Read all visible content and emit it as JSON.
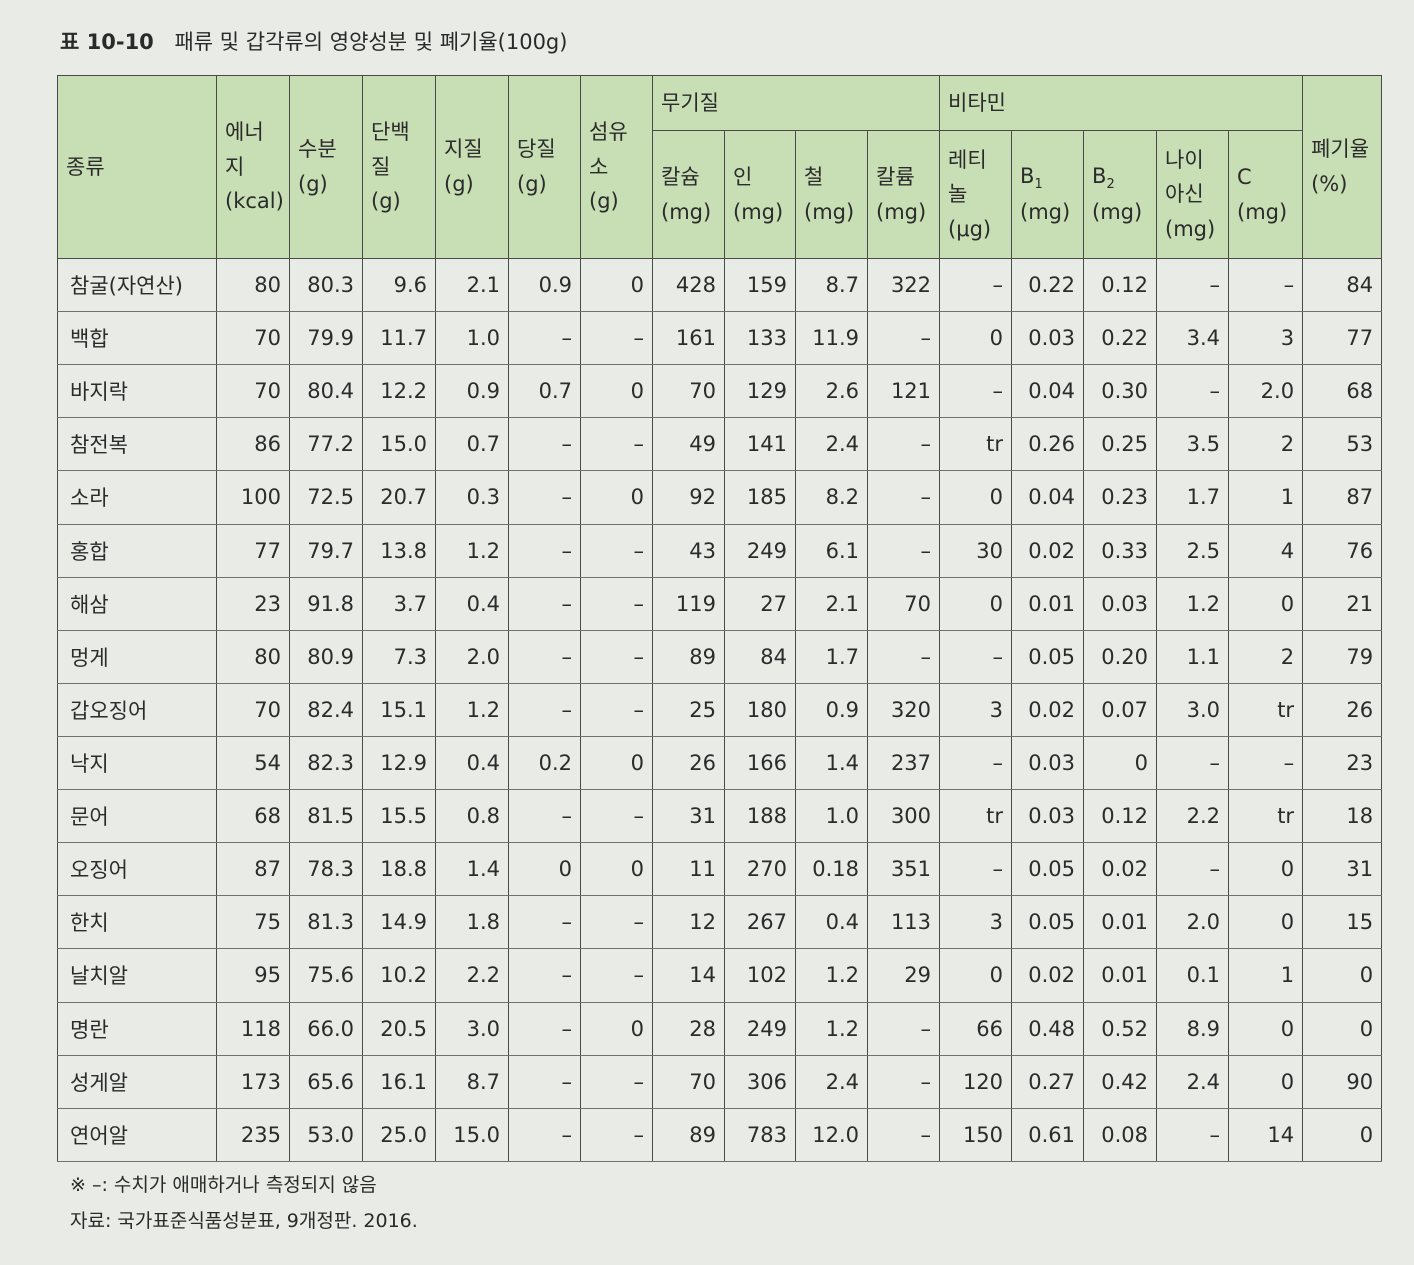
{
  "caption": {
    "number": "표 10-10",
    "title": "패류 및 갑각류의 영양성분 및 폐기율(100g)"
  },
  "table": {
    "group_headers": {
      "minerals": "무기질",
      "vitamins": "비타민"
    },
    "columns": [
      {
        "label": "종류",
        "unit": ""
      },
      {
        "label": "에너지",
        "unit": "(kcal)"
      },
      {
        "label": "수분",
        "unit": "(g)"
      },
      {
        "label": "단백질",
        "unit": "(g)"
      },
      {
        "label": "지질",
        "unit": "(g)"
      },
      {
        "label": "당질",
        "unit": "(g)"
      },
      {
        "label": "섬유소",
        "unit": "(g)"
      },
      {
        "label": "칼슘",
        "unit": "(mg)"
      },
      {
        "label": "인",
        "unit": "(mg)"
      },
      {
        "label": "철",
        "unit": "(mg)"
      },
      {
        "label": "칼륨",
        "unit": "(mg)"
      },
      {
        "label": "레티놀",
        "unit": "(μg)"
      },
      {
        "label": "B",
        "sub": "1",
        "unit": "(mg)"
      },
      {
        "label": "B",
        "sub": "2",
        "unit": "(mg)"
      },
      {
        "label": "나이",
        "label2": "아신",
        "unit": "(mg)"
      },
      {
        "label": "C",
        "unit": "(mg)"
      },
      {
        "label": "폐기율",
        "unit": "(%)"
      }
    ],
    "rows": [
      [
        "참굴(자연산)",
        "80",
        "80.3",
        "9.6",
        "2.1",
        "0.9",
        "0",
        "428",
        "159",
        "8.7",
        "322",
        "–",
        "0.22",
        "0.12",
        "–",
        "–",
        "84"
      ],
      [
        "백합",
        "70",
        "79.9",
        "11.7",
        "1.0",
        "–",
        "–",
        "161",
        "133",
        "11.9",
        "–",
        "0",
        "0.03",
        "0.22",
        "3.4",
        "3",
        "77"
      ],
      [
        "바지락",
        "70",
        "80.4",
        "12.2",
        "0.9",
        "0.7",
        "0",
        "70",
        "129",
        "2.6",
        "121",
        "–",
        "0.04",
        "0.30",
        "–",
        "2.0",
        "68"
      ],
      [
        "참전복",
        "86",
        "77.2",
        "15.0",
        "0.7",
        "–",
        "–",
        "49",
        "141",
        "2.4",
        "–",
        "tr",
        "0.26",
        "0.25",
        "3.5",
        "2",
        "53"
      ],
      [
        "소라",
        "100",
        "72.5",
        "20.7",
        "0.3",
        "–",
        "0",
        "92",
        "185",
        "8.2",
        "–",
        "0",
        "0.04",
        "0.23",
        "1.7",
        "1",
        "87"
      ],
      [
        "홍합",
        "77",
        "79.7",
        "13.8",
        "1.2",
        "–",
        "–",
        "43",
        "249",
        "6.1",
        "–",
        "30",
        "0.02",
        "0.33",
        "2.5",
        "4",
        "76"
      ],
      [
        "해삼",
        "23",
        "91.8",
        "3.7",
        "0.4",
        "–",
        "–",
        "119",
        "27",
        "2.1",
        "70",
        "0",
        "0.01",
        "0.03",
        "1.2",
        "0",
        "21"
      ],
      [
        "멍게",
        "80",
        "80.9",
        "7.3",
        "2.0",
        "–",
        "–",
        "89",
        "84",
        "1.7",
        "–",
        "–",
        "0.05",
        "0.20",
        "1.1",
        "2",
        "79"
      ],
      [
        "갑오징어",
        "70",
        "82.4",
        "15.1",
        "1.2",
        "–",
        "–",
        "25",
        "180",
        "0.9",
        "320",
        "3",
        "0.02",
        "0.07",
        "3.0",
        "tr",
        "26"
      ],
      [
        "낙지",
        "54",
        "82.3",
        "12.9",
        "0.4",
        "0.2",
        "0",
        "26",
        "166",
        "1.4",
        "237",
        "–",
        "0.03",
        "0",
        "–",
        "–",
        "23"
      ],
      [
        "문어",
        "68",
        "81.5",
        "15.5",
        "0.8",
        "–",
        "–",
        "31",
        "188",
        "1.0",
        "300",
        "tr",
        "0.03",
        "0.12",
        "2.2",
        "tr",
        "18"
      ],
      [
        "오징어",
        "87",
        "78.3",
        "18.8",
        "1.4",
        "0",
        "0",
        "11",
        "270",
        "0.18",
        "351",
        "–",
        "0.05",
        "0.02",
        "–",
        "0",
        "31"
      ],
      [
        "한치",
        "75",
        "81.3",
        "14.9",
        "1.8",
        "–",
        "–",
        "12",
        "267",
        "0.4",
        "113",
        "3",
        "0.05",
        "0.01",
        "2.0",
        "0",
        "15"
      ],
      [
        "날치알",
        "95",
        "75.6",
        "10.2",
        "2.2",
        "–",
        "–",
        "14",
        "102",
        "1.2",
        "29",
        "0",
        "0.02",
        "0.01",
        "0.1",
        "1",
        "0"
      ],
      [
        "명란",
        "118",
        "66.0",
        "20.5",
        "3.0",
        "–",
        "0",
        "28",
        "249",
        "1.2",
        "–",
        "66",
        "0.48",
        "0.52",
        "8.9",
        "0",
        "0"
      ],
      [
        "성게알",
        "173",
        "65.6",
        "16.1",
        "8.7",
        "–",
        "–",
        "70",
        "306",
        "2.4",
        "–",
        "120",
        "0.27",
        "0.42",
        "2.4",
        "0",
        "90"
      ],
      [
        "연어알",
        "235",
        "53.0",
        "25.0",
        "15.0",
        "–",
        "–",
        "89",
        "783",
        "12.0",
        "–",
        "150",
        "0.61",
        "0.08",
        "–",
        "14",
        "0"
      ]
    ]
  },
  "footnotes": {
    "note": "※ –: 수치가 애매하거나 측정되지 않음",
    "source": "자료: 국가표준식품성분표, 9개정판. 2016."
  }
}
